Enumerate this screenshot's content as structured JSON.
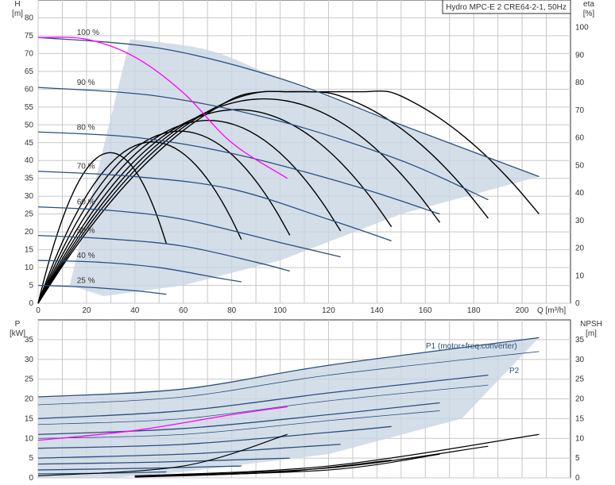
{
  "chart_data": [
    {
      "type": "line",
      "title": "Hydro MPC-E 2 CRE64-2-1, 50Hz",
      "x_unit_label": "Q [m³/h]",
      "y_left_label": "H",
      "y_left_unit": "[m]",
      "y_right_label": "eta",
      "y_right_unit": "[%]",
      "xlim": [
        0,
        220
      ],
      "ylim_left": [
        0,
        85
      ],
      "ylim_right": [
        0,
        110
      ],
      "x_ticks": [
        0,
        20,
        40,
        60,
        80,
        100,
        120,
        140,
        160,
        180,
        200
      ],
      "y_left_ticks": [
        0,
        5,
        10,
        15,
        20,
        25,
        30,
        35,
        40,
        45,
        50,
        55,
        60,
        65,
        70,
        75,
        80
      ],
      "y_right_ticks": [
        0,
        10,
        20,
        30,
        40,
        50,
        60,
        70,
        80,
        90,
        100
      ],
      "grid": true,
      "operating_area_color": "#c9d6e3",
      "curve_color": "#2a4f7c",
      "system_curve_color": "#ff00ff",
      "eta_color": "#000000",
      "speed_curves": [
        {
          "label": "100 %",
          "x": [
            0,
            50,
            100,
            150,
            207
          ],
          "y": [
            74.5,
            71.5,
            63,
            50,
            35.5
          ]
        },
        {
          "label": "90 %",
          "x": [
            0,
            50,
            100,
            150,
            186
          ],
          "y": [
            60.5,
            58,
            51,
            40,
            29
          ]
        },
        {
          "label": "80 %",
          "x": [
            0,
            40,
            80,
            130,
            166
          ],
          "y": [
            48,
            46.5,
            42,
            33,
            25
          ]
        },
        {
          "label": "70 %",
          "x": [
            0,
            40,
            80,
            120,
            146
          ],
          "y": [
            37,
            35.5,
            32,
            23.5,
            17.5
          ]
        },
        {
          "label": "60 %",
          "x": [
            0,
            30,
            60,
            100,
            125
          ],
          "y": [
            27,
            26,
            23.5,
            17,
            13
          ]
        },
        {
          "label": "50 %",
          "x": [
            0,
            30,
            60,
            90,
            104
          ],
          "y": [
            19,
            18,
            16,
            11.5,
            9
          ]
        },
        {
          "label": "40 %",
          "x": [
            0,
            25,
            50,
            75,
            84
          ],
          "y": [
            12,
            11.5,
            10,
            7,
            6
          ]
        },
        {
          "label": "25 %",
          "x": [
            0,
            20,
            40,
            53
          ],
          "y": [
            5,
            4.5,
            3.5,
            2.5
          ]
        }
      ],
      "system_curve": {
        "x": [
          0,
          20,
          40,
          60,
          80,
          103
        ],
        "y": [
          74.5,
          74,
          69,
          59,
          45,
          35
        ]
      },
      "eta_peak_percent": 68.5
    },
    {
      "type": "line",
      "y_left_label": "P",
      "y_left_unit": "[kW]",
      "y_right_label": "NPSH",
      "y_right_unit": "[m]",
      "xlim": [
        0,
        220
      ],
      "ylim": [
        0,
        40
      ],
      "y_left_ticks": [
        0,
        5,
        10,
        15,
        20,
        25,
        30,
        35
      ],
      "y_right_ticks": [
        0,
        5,
        10,
        15,
        20,
        25,
        30,
        35
      ],
      "grid": true,
      "p1_label": "P1 (motor+freq.converter)",
      "p2_label": "P2",
      "p1_curves": [
        {
          "x": [
            0,
            60,
            120,
            207
          ],
          "y": [
            20.5,
            22.5,
            28.5,
            35.5
          ]
        },
        {
          "x": [
            0,
            60,
            120,
            186
          ],
          "y": [
            15,
            17,
            21.5,
            26
          ]
        },
        {
          "x": [
            0,
            60,
            120,
            166
          ],
          "y": [
            11,
            12.5,
            16,
            19
          ]
        },
        {
          "x": [
            0,
            60,
            120,
            146
          ],
          "y": [
            7.5,
            8.5,
            11.5,
            13
          ]
        },
        {
          "x": [
            0,
            60,
            100,
            125
          ],
          "y": [
            5,
            6,
            7.5,
            8.5
          ]
        },
        {
          "x": [
            0,
            50,
            104
          ],
          "y": [
            3.5,
            4,
            5
          ]
        },
        {
          "x": [
            0,
            50,
            84
          ],
          "y": [
            2,
            2.5,
            3
          ]
        },
        {
          "x": [
            0,
            30,
            53
          ],
          "y": [
            1,
            1.2,
            1.5
          ]
        }
      ],
      "p2_curves": [
        {
          "x": [
            0,
            60,
            120,
            207
          ],
          "y": [
            18.5,
            20.5,
            26,
            32
          ]
        },
        {
          "x": [
            0,
            60,
            120,
            186
          ],
          "y": [
            13.5,
            15,
            19.5,
            23.5
          ]
        },
        {
          "x": [
            0,
            60,
            120,
            166
          ],
          "y": [
            10,
            11,
            14.5,
            17
          ]
        }
      ],
      "p_system": {
        "x": [
          0,
          40,
          80,
          103
        ],
        "y": [
          9.5,
          12,
          16,
          18
        ]
      },
      "npsh_curves": [
        {
          "x": [
            0,
            60,
            103
          ],
          "y": [
            0.5,
            3,
            11
          ]
        },
        {
          "x": [
            40,
            120,
            207
          ],
          "y": [
            0.5,
            3,
            11
          ]
        },
        {
          "x": [
            40,
            120,
            186
          ],
          "y": [
            0.3,
            2.5,
            8
          ]
        },
        {
          "x": [
            40,
            120,
            166
          ],
          "y": [
            0.3,
            2,
            6
          ]
        },
        {
          "x": [
            40,
            100,
            146
          ],
          "y": [
            0.2,
            1.5,
            4.5
          ]
        }
      ]
    }
  ]
}
